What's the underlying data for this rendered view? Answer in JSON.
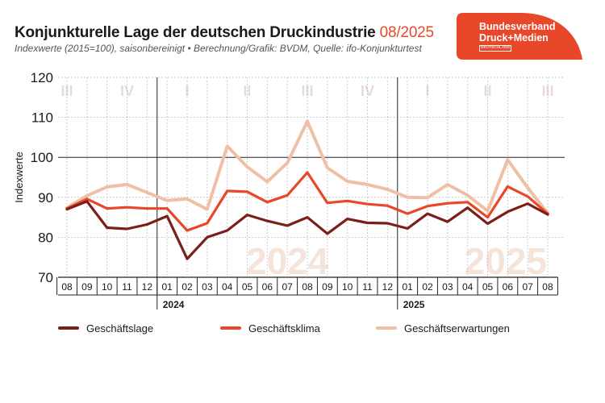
{
  "header": {
    "title": "Konjunkturelle Lage der deutschen Druckindustrie",
    "title_date": "08/2025",
    "subtitle": "Indexwerte (2015=100), saisonbereinigt • Berechnung/Grafik: BVDM, Quelle: ifo-Konjunkturtest"
  },
  "logo": {
    "line1": "Bundesverband",
    "line2": "Druck+Medien",
    "line3": "DEUTSCHLAND",
    "color": "#e8472a"
  },
  "colors": {
    "lage": "#7a1f1a",
    "klima": "#e8472a",
    "erwartungen": "#efc0a5",
    "quarter_label": "#e8ddd6",
    "year_watermark": "#f5e4da"
  },
  "chart_data": {
    "type": "line",
    "ylabel": "Indexwerte",
    "ylim": [
      70,
      120
    ],
    "yticks": [
      70,
      80,
      90,
      100,
      110,
      120
    ],
    "x": [
      "08",
      "09",
      "10",
      "11",
      "12",
      "01",
      "02",
      "03",
      "04",
      "05",
      "06",
      "07",
      "08",
      "09",
      "10",
      "11",
      "12",
      "01",
      "02",
      "03",
      "04",
      "05",
      "06",
      "07",
      "08"
    ],
    "year_labels": [
      {
        "label": "2024",
        "start_index": 5
      },
      {
        "label": "2025",
        "start_index": 17
      }
    ],
    "year_watermarks": [
      {
        "label": "2024",
        "center_index": 11
      },
      {
        "label": "2025",
        "center_index": 21.9
      }
    ],
    "quarters": [
      {
        "label": "III",
        "center_index": 0
      },
      {
        "label": "IV",
        "center_index": 3
      },
      {
        "label": "I",
        "center_index": 6
      },
      {
        "label": "II",
        "center_index": 9
      },
      {
        "label": "III",
        "center_index": 12
      },
      {
        "label": "IV",
        "center_index": 15
      },
      {
        "label": "I",
        "center_index": 18
      },
      {
        "label": "II",
        "center_index": 21
      },
      {
        "label": "III",
        "center_index": 24
      }
    ],
    "grid": true,
    "legend_position": "bottom",
    "series": [
      {
        "name": "Geschäftslage",
        "values": [
          87.0,
          89.0,
          82.4,
          82.1,
          83.2,
          85.3,
          74.6,
          80.0,
          81.7,
          85.6,
          84.1,
          82.9,
          85.0,
          80.9,
          84.6,
          83.6,
          83.5,
          82.2,
          85.9,
          83.9,
          87.4,
          83.4,
          86.4,
          88.4,
          85.7
        ]
      },
      {
        "name": "Geschäftsklima",
        "values": [
          87.2,
          89.6,
          87.2,
          87.5,
          87.2,
          87.2,
          81.7,
          83.5,
          91.6,
          91.4,
          88.8,
          90.5,
          96.2,
          88.6,
          89.1,
          88.3,
          87.9,
          85.9,
          87.8,
          88.5,
          88.8,
          85.0,
          92.7,
          90.2,
          85.9
        ]
      },
      {
        "name": "Geschäftserwartungen",
        "values": [
          87.4,
          90.4,
          92.6,
          93.2,
          91.2,
          89.2,
          89.6,
          87.0,
          102.8,
          97.6,
          93.9,
          98.6,
          109.0,
          97.4,
          94.0,
          93.2,
          92.0,
          90.0,
          89.9,
          93.2,
          90.5,
          86.6,
          99.4,
          92.4,
          86.0
        ]
      }
    ]
  }
}
